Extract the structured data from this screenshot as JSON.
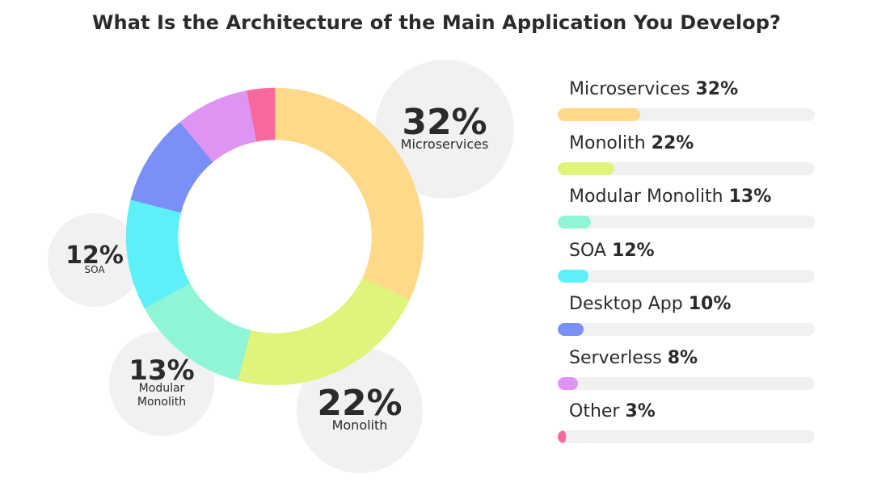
{
  "chart_data": {
    "type": "pie",
    "title": "What Is the Architecture of the Main Application You Develop?",
    "categories": [
      "Microservices",
      "Monolith",
      "Modular Monolith",
      "SOA",
      "Desktop App",
      "Serverless",
      "Other"
    ],
    "values": [
      32,
      22,
      13,
      12,
      10,
      8,
      3
    ],
    "unit": "%",
    "colors": [
      "#ffd98a",
      "#dff47a",
      "#8ff5d6",
      "#5ef0f8",
      "#7a8ff8",
      "#dd94f3",
      "#f7689c"
    ],
    "legend_position": "right",
    "callouts": [
      {
        "pct": "32%",
        "label": [
          "Microservices"
        ]
      },
      {
        "pct": "22%",
        "label": [
          "Monolith"
        ]
      },
      {
        "pct": "13%",
        "label": [
          "Modular",
          "Monolith"
        ]
      },
      {
        "pct": "12%",
        "label": [
          "SOA"
        ]
      }
    ],
    "legend": [
      {
        "name": "Microservices",
        "pct": "32%"
      },
      {
        "name": "Monolith",
        "pct": "22%"
      },
      {
        "name": "Modular Monolith",
        "pct": "13%"
      },
      {
        "name": "SOA",
        "pct": "12%"
      },
      {
        "name": "Desktop App",
        "pct": "10%"
      },
      {
        "name": "Serverless",
        "pct": "8%"
      },
      {
        "name": "Other",
        "pct": "3%"
      }
    ]
  }
}
